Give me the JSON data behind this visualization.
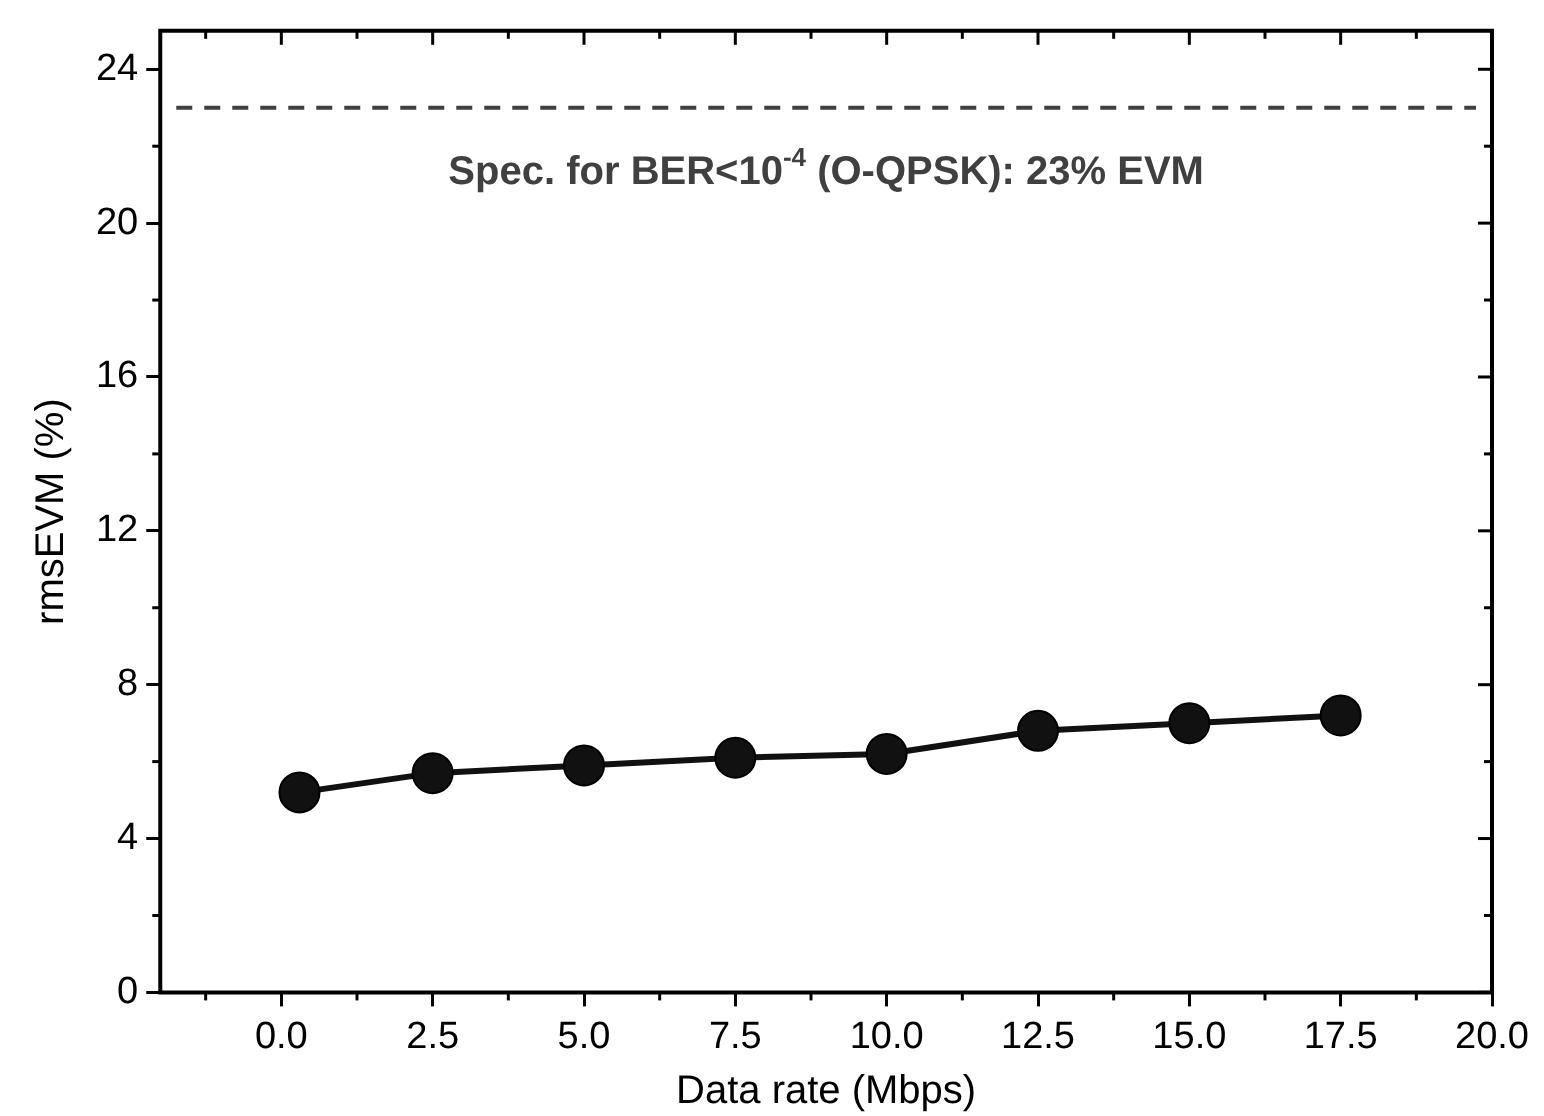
{
  "chart_data": {
    "type": "line",
    "xlabel": "Data rate (Mbps)",
    "ylabel": "rmsEVM (%)",
    "x": [
      0.3,
      2.5,
      5,
      7.5,
      10,
      12.5,
      15,
      17.5
    ],
    "series": [
      {
        "color": "#111111",
        "values": [
          5.2,
          5.7,
          5.9,
          6.1,
          6.2,
          6.8,
          7.0,
          7.2
        ]
      }
    ],
    "xlim": [
      -2,
      20
    ],
    "xticks": [
      {
        "value": 0,
        "label": "0.0"
      },
      2.5,
      {
        "value": 5,
        "label": "5.0"
      },
      7.5,
      {
        "value": 10,
        "label": "10.0"
      },
      12.5,
      {
        "value": 15,
        "label": "15.0"
      },
      17.5,
      {
        "value": 20,
        "label": "20.0"
      }
    ],
    "ylim": [
      0,
      25
    ],
    "yticks": [
      0,
      4,
      8,
      12,
      16,
      20,
      24
    ],
    "ref_lines": [
      {
        "axis": "y",
        "value": 23,
        "label": "Spec. for BER<10$^{-4}$ (O-QPSK): 23% EVM",
        "color": "#404040",
        "line_style": "dashed"
      }
    ],
    "marker": "circle",
    "line_style": "solid",
    "grid": false,
    "legend": false
  }
}
